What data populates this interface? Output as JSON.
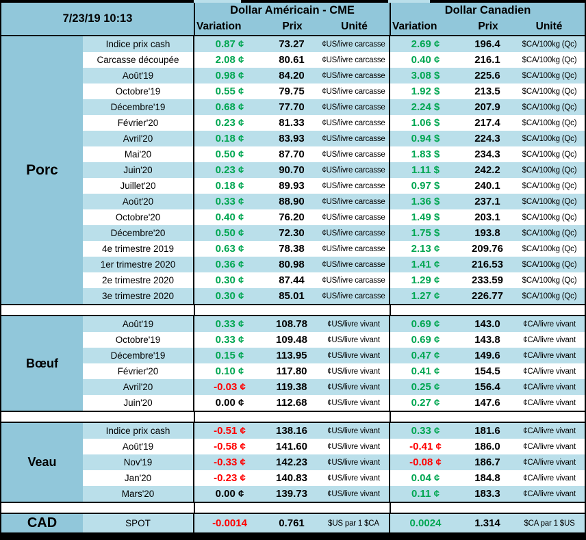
{
  "header": {
    "datetime": "7/23/19 10:13",
    "us_title": "Dollar Américain - CME",
    "ca_title": "Dollar Canadien",
    "columns": {
      "variation": "Variation",
      "prix": "Prix",
      "unite": "Unité"
    }
  },
  "colors": {
    "green": "#00A651",
    "red": "#FF0000",
    "blue_main": "#91C7DA",
    "blue_row": "#BADFEA"
  },
  "sections": [
    {
      "id": "porc",
      "name": "Porc",
      "rows": [
        {
          "label": "Indice prix cash",
          "us": {
            "v": "0.87",
            "s": "¢",
            "t": "up",
            "p": "73.27",
            "u": "¢US/livre carcasse"
          },
          "ca": {
            "v": "2.69",
            "s": "¢",
            "t": "up",
            "p": "196.4",
            "u": "$CA/100kg (Qc)"
          }
        },
        {
          "label": "Carcasse découpée",
          "us": {
            "v": "2.08",
            "s": "¢",
            "t": "up",
            "p": "80.61",
            "u": "¢US/livre carcasse"
          },
          "ca": {
            "v": "0.40",
            "s": "¢",
            "t": "up",
            "p": "216.1",
            "u": "$CA/100kg (Qc)"
          }
        },
        {
          "label": "Août'19",
          "us": {
            "v": "0.98",
            "s": "¢",
            "t": "up",
            "p": "84.20",
            "u": "¢US/livre carcasse"
          },
          "ca": {
            "v": "3.08",
            "s": "$",
            "t": "up",
            "p": "225.6",
            "u": "$CA/100kg (Qc)"
          }
        },
        {
          "label": "Octobre'19",
          "us": {
            "v": "0.55",
            "s": "¢",
            "t": "up",
            "p": "79.75",
            "u": "¢US/livre carcasse"
          },
          "ca": {
            "v": "1.92",
            "s": "$",
            "t": "up",
            "p": "213.5",
            "u": "$CA/100kg (Qc)"
          }
        },
        {
          "label": "Décembre'19",
          "us": {
            "v": "0.68",
            "s": "¢",
            "t": "up",
            "p": "77.70",
            "u": "¢US/livre carcasse"
          },
          "ca": {
            "v": "2.24",
            "s": "$",
            "t": "up",
            "p": "207.9",
            "u": "$CA/100kg (Qc)"
          }
        },
        {
          "label": "Février'20",
          "us": {
            "v": "0.23",
            "s": "¢",
            "t": "up",
            "p": "81.33",
            "u": "¢US/livre carcasse"
          },
          "ca": {
            "v": "1.06",
            "s": "$",
            "t": "up",
            "p": "217.4",
            "u": "$CA/100kg (Qc)"
          }
        },
        {
          "label": "Avril'20",
          "us": {
            "v": "0.18",
            "s": "¢",
            "t": "up",
            "p": "83.93",
            "u": "¢US/livre carcasse"
          },
          "ca": {
            "v": "0.94",
            "s": "$",
            "t": "up",
            "p": "224.3",
            "u": "$CA/100kg (Qc)"
          }
        },
        {
          "label": "Mai'20",
          "us": {
            "v": "0.50",
            "s": "¢",
            "t": "up",
            "p": "87.70",
            "u": "¢US/livre carcasse"
          },
          "ca": {
            "v": "1.83",
            "s": "$",
            "t": "up",
            "p": "234.3",
            "u": "$CA/100kg (Qc)"
          }
        },
        {
          "label": "Juin'20",
          "us": {
            "v": "0.23",
            "s": "¢",
            "t": "up",
            "p": "90.70",
            "u": "¢US/livre carcasse"
          },
          "ca": {
            "v": "1.11",
            "s": "$",
            "t": "up",
            "p": "242.2",
            "u": "$CA/100kg (Qc)"
          }
        },
        {
          "label": "Juillet'20",
          "us": {
            "v": "0.18",
            "s": "¢",
            "t": "up",
            "p": "89.93",
            "u": "¢US/livre carcasse"
          },
          "ca": {
            "v": "0.97",
            "s": "$",
            "t": "up",
            "p": "240.1",
            "u": "$CA/100kg (Qc)"
          }
        },
        {
          "label": "Août'20",
          "us": {
            "v": "0.33",
            "s": "¢",
            "t": "up",
            "p": "88.90",
            "u": "¢US/livre carcasse"
          },
          "ca": {
            "v": "1.36",
            "s": "$",
            "t": "up",
            "p": "237.1",
            "u": "$CA/100kg (Qc)"
          }
        },
        {
          "label": "Octobre'20",
          "us": {
            "v": "0.40",
            "s": "¢",
            "t": "up",
            "p": "76.20",
            "u": "¢US/livre carcasse"
          },
          "ca": {
            "v": "1.49",
            "s": "$",
            "t": "up",
            "p": "203.1",
            "u": "$CA/100kg (Qc)"
          }
        },
        {
          "label": "Décembre'20",
          "us": {
            "v": "0.50",
            "s": "¢",
            "t": "up",
            "p": "72.30",
            "u": "¢US/livre carcasse"
          },
          "ca": {
            "v": "1.75",
            "s": "$",
            "t": "up",
            "p": "193.8",
            "u": "$CA/100kg (Qc)"
          }
        },
        {
          "label": "4e trimestre 2019",
          "us": {
            "v": "0.63",
            "s": "¢",
            "t": "up",
            "p": "78.38",
            "u": "¢US/livre carcasse"
          },
          "ca": {
            "v": "2.13",
            "s": "¢",
            "t": "up",
            "p": "209.76",
            "u": "$CA/100kg (Qc)"
          }
        },
        {
          "label": "1er trimestre 2020",
          "us": {
            "v": "0.36",
            "s": "¢",
            "t": "up",
            "p": "80.98",
            "u": "¢US/livre carcasse"
          },
          "ca": {
            "v": "1.41",
            "s": "¢",
            "t": "up",
            "p": "216.53",
            "u": "$CA/100kg (Qc)"
          }
        },
        {
          "label": "2e trimestre 2020",
          "us": {
            "v": "0.30",
            "s": "¢",
            "t": "up",
            "p": "87.44",
            "u": "¢US/livre carcasse"
          },
          "ca": {
            "v": "1.29",
            "s": "¢",
            "t": "up",
            "p": "233.59",
            "u": "$CA/100kg (Qc)"
          }
        },
        {
          "label": "3e trimestre 2020",
          "us": {
            "v": "0.30",
            "s": "¢",
            "t": "up",
            "p": "85.01",
            "u": "¢US/livre carcasse"
          },
          "ca": {
            "v": "1.27",
            "s": "¢",
            "t": "up",
            "p": "226.77",
            "u": "$CA/100kg (Qc)"
          }
        }
      ]
    },
    {
      "id": "boeuf",
      "name": "Bœuf",
      "rows": [
        {
          "label": "Août'19",
          "us": {
            "v": "0.33",
            "s": "¢",
            "t": "up",
            "p": "108.78",
            "u": "¢US/livre vivant"
          },
          "ca": {
            "v": "0.69",
            "s": "¢",
            "t": "up",
            "p": "143.0",
            "u": "¢CA/livre vivant"
          }
        },
        {
          "label": "Octobre'19",
          "us": {
            "v": "0.33",
            "s": "¢",
            "t": "up",
            "p": "109.48",
            "u": "¢US/livre vivant"
          },
          "ca": {
            "v": "0.69",
            "s": "¢",
            "t": "up",
            "p": "143.8",
            "u": "¢CA/livre vivant"
          }
        },
        {
          "label": "Décembre'19",
          "us": {
            "v": "0.15",
            "s": "¢",
            "t": "up",
            "p": "113.95",
            "u": "¢US/livre vivant"
          },
          "ca": {
            "v": "0.47",
            "s": "¢",
            "t": "up",
            "p": "149.6",
            "u": "¢CA/livre vivant"
          }
        },
        {
          "label": "Février'20",
          "us": {
            "v": "0.10",
            "s": "¢",
            "t": "up",
            "p": "117.80",
            "u": "¢US/livre vivant"
          },
          "ca": {
            "v": "0.41",
            "s": "¢",
            "t": "up",
            "p": "154.5",
            "u": "¢CA/livre vivant"
          }
        },
        {
          "label": "Avril'20",
          "us": {
            "v": "-0.03",
            "s": "¢",
            "t": "down",
            "p": "119.38",
            "u": "¢US/livre vivant"
          },
          "ca": {
            "v": "0.25",
            "s": "¢",
            "t": "up",
            "p": "156.4",
            "u": "¢CA/livre vivant"
          }
        },
        {
          "label": "Juin'20",
          "us": {
            "v": "0.00",
            "s": "¢",
            "t": "flat",
            "p": "112.68",
            "u": "¢US/livre vivant"
          },
          "ca": {
            "v": "0.27",
            "s": "¢",
            "t": "up",
            "p": "147.6",
            "u": "¢CA/livre vivant"
          }
        }
      ]
    },
    {
      "id": "veau",
      "name": "Veau",
      "rows": [
        {
          "label": "Indice prix cash",
          "us": {
            "v": "-0.51",
            "s": "¢",
            "t": "down",
            "p": "138.16",
            "u": "¢US/livre vivant"
          },
          "ca": {
            "v": "0.33",
            "s": "¢",
            "t": "up",
            "p": "181.6",
            "u": "¢CA/livre vivant"
          }
        },
        {
          "label": "Août'19",
          "us": {
            "v": "-0.58",
            "s": "¢",
            "t": "down",
            "p": "141.60",
            "u": "¢US/livre vivant"
          },
          "ca": {
            "v": "-0.41",
            "s": "¢",
            "t": "down",
            "p": "186.0",
            "u": "¢CA/livre vivant"
          }
        },
        {
          "label": "Nov'19",
          "us": {
            "v": "-0.33",
            "s": "¢",
            "t": "down",
            "p": "142.23",
            "u": "¢US/livre vivant"
          },
          "ca": {
            "v": "-0.08",
            "s": "¢",
            "t": "down",
            "p": "186.7",
            "u": "¢CA/livre vivant"
          }
        },
        {
          "label": "Jan'20",
          "us": {
            "v": "-0.23",
            "s": "¢",
            "t": "down",
            "p": "140.83",
            "u": "¢US/livre vivant"
          },
          "ca": {
            "v": "0.04",
            "s": "¢",
            "t": "up",
            "p": "184.8",
            "u": "¢CA/livre vivant"
          }
        },
        {
          "label": "Mars'20",
          "us": {
            "v": "0.00",
            "s": "¢",
            "t": "flat",
            "p": "139.73",
            "u": "¢US/livre vivant"
          },
          "ca": {
            "v": "0.11",
            "s": "¢",
            "t": "up",
            "p": "183.3",
            "u": "¢CA/livre vivant"
          }
        }
      ]
    },
    {
      "id": "cad",
      "name": "CAD",
      "rows": [
        {
          "label": "SPOT",
          "us": {
            "v": "-0.0014",
            "s": "",
            "t": "down",
            "p": "0.761",
            "u": "$US par 1 $CA"
          },
          "ca": {
            "v": "0.0024",
            "s": "",
            "t": "up",
            "p": "1.314",
            "u": "$CA par 1 $US"
          }
        }
      ]
    }
  ]
}
